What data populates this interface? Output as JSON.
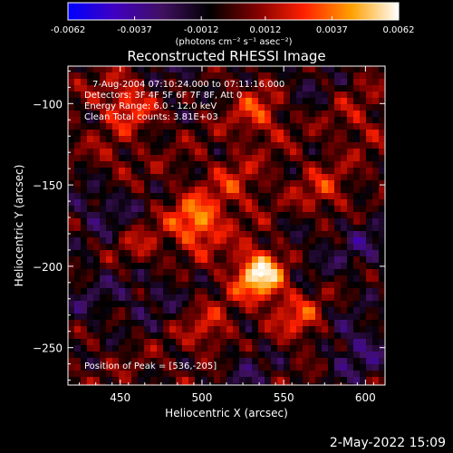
{
  "chart_data": {
    "type": "heatmap",
    "title": "Reconstructed RHESSI Image",
    "xlabel": "Heliocentric X (arcsec)",
    "ylabel": "Heliocentric Y (arcsec)",
    "xlim": [
      418,
      612
    ],
    "ylim": [
      -273,
      -77
    ],
    "x_ticks": [
      450,
      500,
      550,
      600
    ],
    "y_ticks": [
      -100,
      -150,
      -200,
      -250
    ],
    "colorbar": {
      "label": "(photons cm⁻² s⁻¹ asec⁻²)",
      "range": [
        -0.0062,
        0.0062
      ],
      "ticks": [
        "-0.0062",
        "-0.0037",
        "-0.0012",
        "0.0012",
        "0.0037",
        "0.0062"
      ],
      "colormap": [
        "#0000ff",
        "#4000c0",
        "#401060",
        "#000000",
        "#800000",
        "#ff2000",
        "#ffa000",
        "#ffffff"
      ]
    },
    "annotations": [
      "7-Aug-2004 07:10:24.000 to 07:11:16.000",
      "Detectors: 3F 4F 5F 6F 7F 8F, Att 0",
      "Energy Range: 6.0 - 12.0 keV",
      "Clean    Total counts: 3.81E+03"
    ],
    "peak_label": "Position of Peak = [536,-205]",
    "peak": {
      "x": 536,
      "y": -205
    },
    "sources": [
      {
        "x": 536,
        "y": -205,
        "value": 0.0062
      },
      {
        "x": 497,
        "y": -173,
        "value": 0.0044
      },
      {
        "x": 455,
        "y": -100,
        "value": 0.003
      },
      {
        "x": 535,
        "y": -105,
        "value": 0.0026
      },
      {
        "x": 560,
        "y": -232,
        "value": 0.0026
      },
      {
        "x": 505,
        "y": -240,
        "value": 0.0022
      },
      {
        "x": 575,
        "y": -155,
        "value": 0.002
      },
      {
        "x": 463,
        "y": -190,
        "value": 0.0018
      },
      {
        "x": 445,
        "y": -140,
        "value": 0.0016
      },
      {
        "x": 520,
        "y": -150,
        "value": 0.0018
      },
      {
        "x": 595,
        "y": -110,
        "value": 0.0012
      }
    ],
    "negative_regions": [
      {
        "x": 440,
        "y": -160,
        "value": -0.0022
      },
      {
        "x": 595,
        "y": -250,
        "value": -0.0024
      },
      {
        "x": 600,
        "y": -185,
        "value": -0.0018
      },
      {
        "x": 525,
        "y": -262,
        "value": -0.0016
      },
      {
        "x": 485,
        "y": -80,
        "value": -0.0014
      },
      {
        "x": 560,
        "y": -85,
        "value": -0.0012
      },
      {
        "x": 430,
        "y": -220,
        "value": -0.0014
      },
      {
        "x": 470,
        "y": -215,
        "value": -0.0016
      },
      {
        "x": 560,
        "y": -195,
        "value": -0.0012
      }
    ]
  },
  "timestamp": "2-May-2022 15:09"
}
